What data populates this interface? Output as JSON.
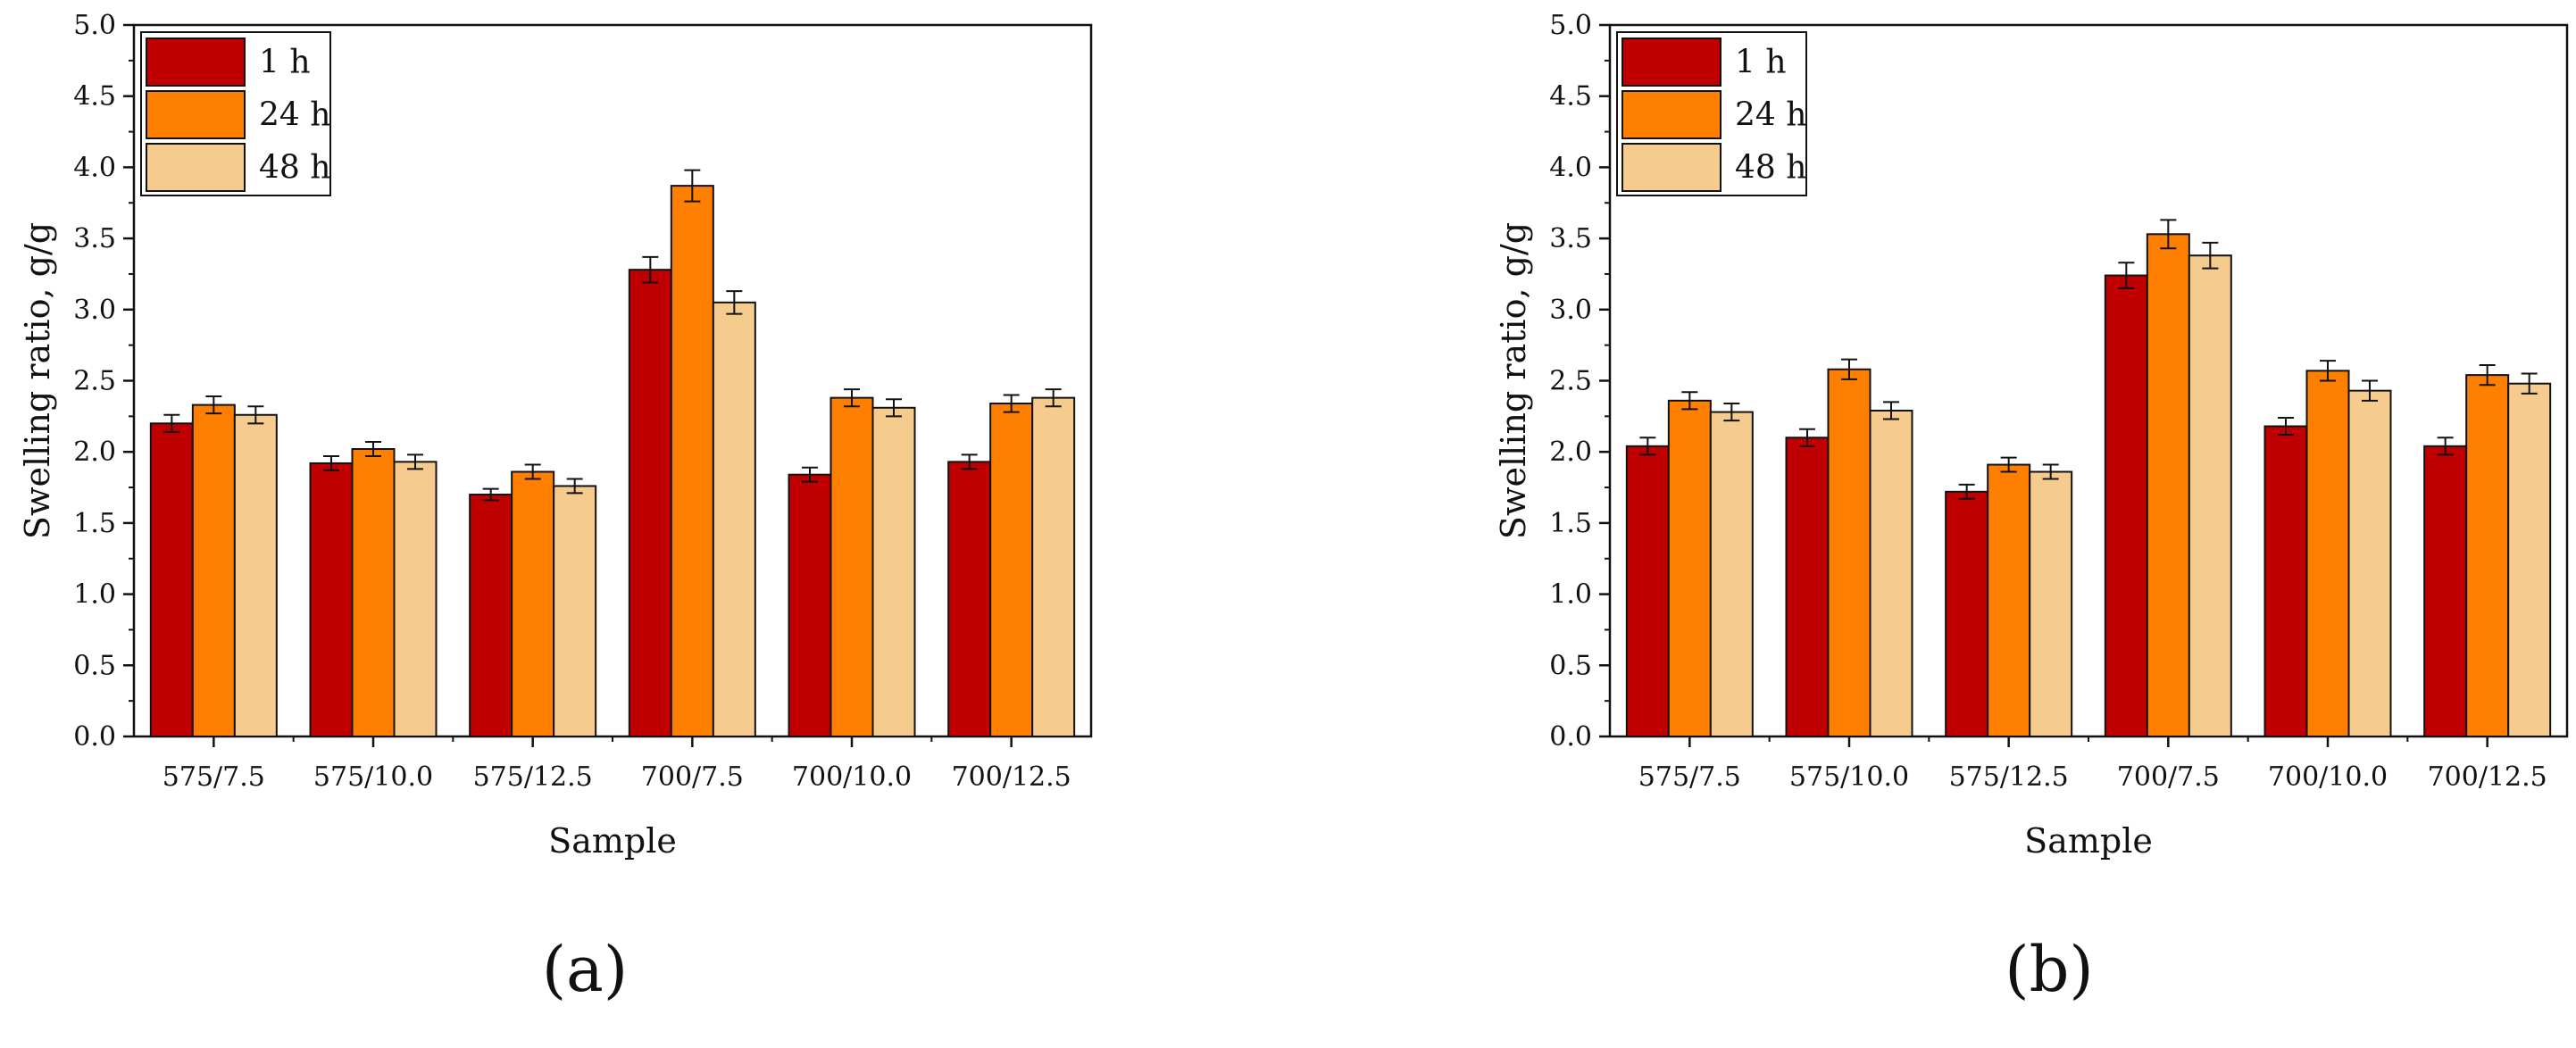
{
  "chart_data": [
    {
      "type": "bar",
      "panel_label": "(a)",
      "xlabel": "Sample",
      "ylabel": "Swelling ratio, g/g",
      "ylim": [
        0,
        5.0
      ],
      "yticks": [
        "0.0",
        "0.5",
        "1.0",
        "1.5",
        "2.0",
        "2.5",
        "3.0",
        "3.5",
        "4.0",
        "4.5",
        "5.0"
      ],
      "categories": [
        "575/7.5",
        "575/10.0",
        "575/12.5",
        "700/7.5",
        "700/10.0",
        "700/12.5"
      ],
      "legend_position": "top-left",
      "series": [
        {
          "name": "1 h",
          "color": "#c00000",
          "values": [
            2.2,
            1.92,
            1.7,
            3.28,
            1.84,
            1.93
          ],
          "errors": [
            0.06,
            0.05,
            0.04,
            0.09,
            0.05,
            0.05
          ]
        },
        {
          "name": "24 h",
          "color": "#ff8000",
          "values": [
            2.33,
            2.02,
            1.86,
            3.87,
            2.38,
            2.34
          ],
          "errors": [
            0.06,
            0.05,
            0.05,
            0.11,
            0.06,
            0.06
          ]
        },
        {
          "name": "48 h",
          "color": "#f5cb8e",
          "values": [
            2.26,
            1.93,
            1.76,
            3.05,
            2.31,
            2.38
          ],
          "errors": [
            0.06,
            0.05,
            0.05,
            0.08,
            0.06,
            0.06
          ]
        }
      ]
    },
    {
      "type": "bar",
      "panel_label": "(b)",
      "xlabel": "Sample",
      "ylabel": "Swelling ratio, g/g",
      "ylim": [
        0,
        5.0
      ],
      "yticks": [
        "0.0",
        "0.5",
        "1.0",
        "1.5",
        "2.0",
        "2.5",
        "3.0",
        "3.5",
        "4.0",
        "4.5",
        "5.0"
      ],
      "categories": [
        "575/7.5",
        "575/10.0",
        "575/12.5",
        "700/7.5",
        "700/10.0",
        "700/12.5"
      ],
      "legend_position": "top-left",
      "series": [
        {
          "name": "1 h",
          "color": "#c00000",
          "values": [
            2.04,
            2.1,
            1.72,
            3.24,
            2.18,
            2.04
          ],
          "errors": [
            0.06,
            0.06,
            0.05,
            0.09,
            0.06,
            0.06
          ]
        },
        {
          "name": "24 h",
          "color": "#ff8000",
          "values": [
            2.36,
            2.58,
            1.91,
            3.53,
            2.57,
            2.54
          ],
          "errors": [
            0.06,
            0.07,
            0.05,
            0.1,
            0.07,
            0.07
          ]
        },
        {
          "name": "48 h",
          "color": "#f5cb8e",
          "values": [
            2.28,
            2.29,
            1.86,
            3.38,
            2.43,
            2.48
          ],
          "errors": [
            0.06,
            0.06,
            0.05,
            0.09,
            0.07,
            0.07
          ]
        }
      ]
    }
  ]
}
